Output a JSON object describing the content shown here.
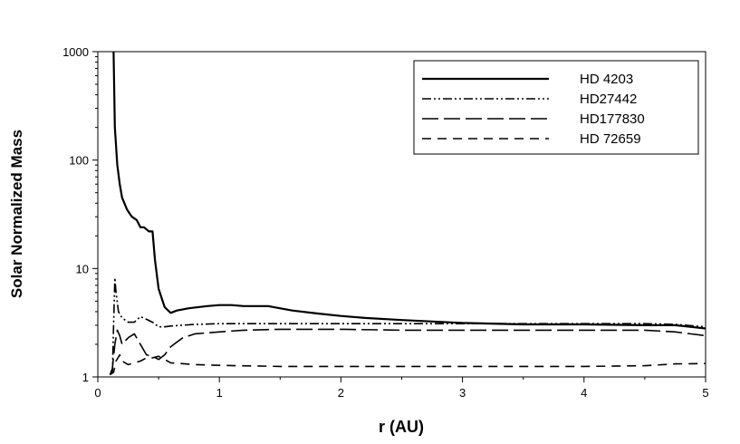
{
  "chart_data": {
    "type": "line",
    "xlabel": "r (AU)",
    "ylabel": "Solar Normalized Mass",
    "xlim": [
      0,
      5
    ],
    "ylim": [
      1,
      1000
    ],
    "yscale": "log",
    "xticks": [
      "0",
      "1",
      "2",
      "3",
      "4",
      "5"
    ],
    "yticks": [
      "1",
      "10",
      "100",
      "1000"
    ],
    "legend_position": "top-right",
    "grid": false,
    "series": [
      {
        "name": "HD 4203",
        "dash": "solid",
        "x": [
          0.13,
          0.14,
          0.16,
          0.18,
          0.2,
          0.24,
          0.28,
          0.32,
          0.35,
          0.38,
          0.42,
          0.45,
          0.47,
          0.5,
          0.55,
          0.6,
          0.65,
          0.75,
          0.9,
          1.0,
          1.1,
          1.2,
          1.4,
          1.6,
          1.8,
          2.0,
          2.2,
          2.5,
          3.0,
          3.5,
          4.0,
          4.5,
          4.75,
          5.0
        ],
        "y": [
          1000,
          200,
          90,
          60,
          45,
          35,
          30,
          28,
          24,
          24,
          22,
          22,
          12,
          6.5,
          4.4,
          3.9,
          4.1,
          4.3,
          4.5,
          4.6,
          4.6,
          4.5,
          4.5,
          4.1,
          3.85,
          3.65,
          3.5,
          3.35,
          3.15,
          3.05,
          3.05,
          3.0,
          3.0,
          2.8
        ]
      },
      {
        "name": "HD27442",
        "dash": "dash-dot-dot",
        "x": [
          0.1,
          0.12,
          0.13,
          0.14,
          0.15,
          0.17,
          0.2,
          0.25,
          0.3,
          0.35,
          0.4,
          0.45,
          0.5,
          0.55,
          0.6,
          0.8,
          1.0,
          1.5,
          2.0,
          2.5,
          3.0,
          4.0,
          4.5,
          4.75,
          5.0
        ],
        "y": [
          1.05,
          1.1,
          3.0,
          8.2,
          6.0,
          4.0,
          3.5,
          3.2,
          3.2,
          3.6,
          3.4,
          3.2,
          2.9,
          2.9,
          2.95,
          3.05,
          3.1,
          3.1,
          3.1,
          3.1,
          3.1,
          3.1,
          3.1,
          3.05,
          2.9
        ]
      },
      {
        "name": "HD177830",
        "dash": "long-dash",
        "x": [
          0.1,
          0.12,
          0.14,
          0.16,
          0.18,
          0.2,
          0.25,
          0.3,
          0.35,
          0.4,
          0.45,
          0.5,
          0.55,
          0.6,
          0.7,
          0.8,
          1.0,
          1.2,
          1.5,
          2.0,
          2.5,
          3.0,
          3.5,
          4.0,
          4.5,
          4.75,
          5.0
        ],
        "y": [
          1.05,
          1.2,
          2.0,
          2.7,
          2.4,
          2.0,
          2.3,
          2.5,
          2.0,
          1.6,
          1.55,
          1.45,
          1.6,
          1.9,
          2.3,
          2.5,
          2.6,
          2.7,
          2.75,
          2.75,
          2.7,
          2.7,
          2.7,
          2.7,
          2.7,
          2.6,
          2.4
        ]
      },
      {
        "name": "HD 72659",
        "dash": "short-dash",
        "x": [
          0.1,
          0.13,
          0.15,
          0.18,
          0.2,
          0.25,
          0.3,
          0.35,
          0.4,
          0.45,
          0.5,
          0.55,
          0.6,
          0.8,
          1.0,
          1.5,
          2.0,
          2.5,
          3.0,
          3.5,
          4.0,
          4.5,
          4.75,
          5.0
        ],
        "y": [
          1.05,
          1.1,
          1.4,
          1.6,
          1.4,
          1.3,
          1.35,
          1.4,
          1.5,
          1.5,
          1.55,
          1.45,
          1.35,
          1.3,
          1.28,
          1.25,
          1.25,
          1.25,
          1.25,
          1.25,
          1.25,
          1.27,
          1.32,
          1.33
        ]
      }
    ]
  }
}
